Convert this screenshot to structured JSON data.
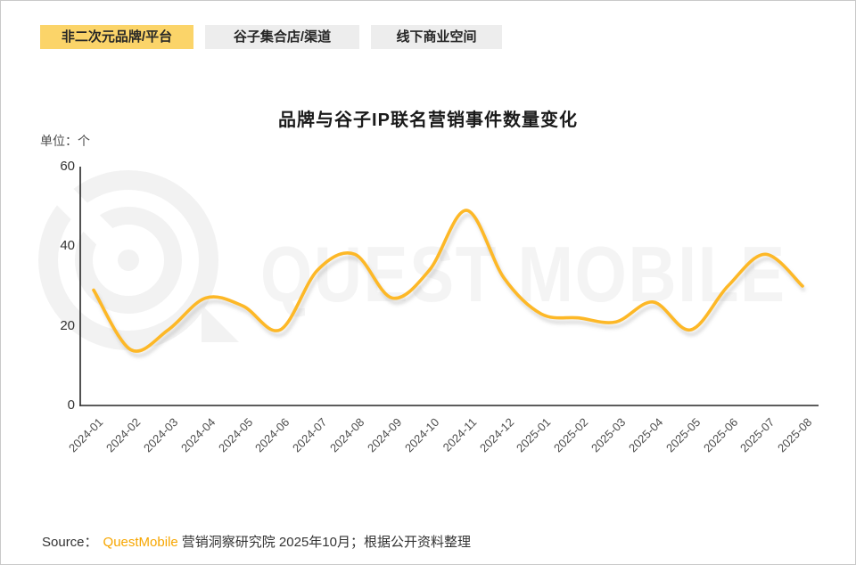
{
  "tabs": [
    {
      "label": "非二次元品牌/平台",
      "active": true
    },
    {
      "label": "谷子集合店/渠道",
      "active": false
    },
    {
      "label": "线下商业空间",
      "active": false
    }
  ],
  "watermark": {
    "text": "QUEST MOBILE"
  },
  "source": {
    "prefix": "Source：",
    "brand": "QuestMobile",
    "suffix": "营销洞察研究院 2025年10月；根据公开资料整理"
  },
  "colors": {
    "line": "#FDB827",
    "active_tab_bg": "#FBD469",
    "inactive_tab_bg": "#EDEDED",
    "brand_orange": "#F7A600",
    "watermark_gray": "#F2F2F2"
  },
  "chart_data": {
    "type": "line",
    "title": "品牌与谷子IP联名营销事件数量变化",
    "unit_label": "单位：个",
    "x": [
      "2024-01",
      "2024-02",
      "2024-03",
      "2024-04",
      "2024-05",
      "2024-06",
      "2024-07",
      "2024-08",
      "2024-09",
      "2024-10",
      "2024-11",
      "2024-12",
      "2025-01",
      "2025-02",
      "2025-03",
      "2025-04",
      "2025-05",
      "2025-06",
      "2025-07",
      "2025-08"
    ],
    "values": [
      29,
      14,
      19,
      27,
      25,
      19,
      34,
      38,
      27,
      34,
      49,
      32,
      23,
      22,
      21,
      26,
      19,
      30,
      38,
      30
    ],
    "y_ticks": [
      0,
      20,
      40,
      60
    ],
    "ylim": [
      0,
      60
    ],
    "xlabel": "",
    "ylabel": "",
    "grid": "off",
    "legend": "none",
    "smooth": true,
    "line_color": "#FDB827"
  }
}
